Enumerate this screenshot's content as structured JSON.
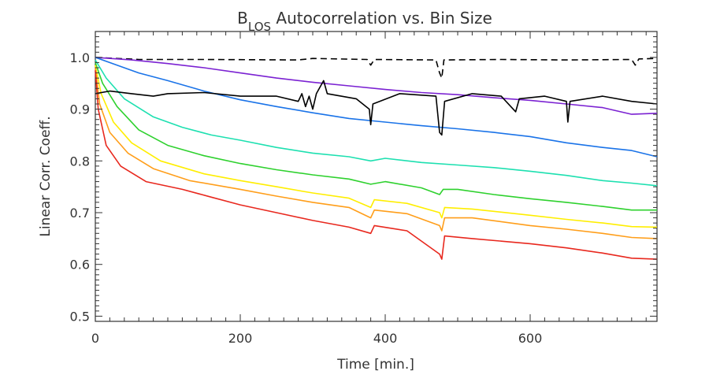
{
  "chart_data": {
    "type": "line",
    "title_main": "B",
    "title_sub": "LOS",
    "title_rest": " Autocorrelation vs. Bin Size",
    "xlabel": "Time [min.]",
    "ylabel": "Linear Corr. Coeff.",
    "xlim": [
      0,
      775
    ],
    "ylim": [
      0.49,
      1.05
    ],
    "xticks": [
      0,
      200,
      400,
      600
    ],
    "xtick_labels": [
      "0",
      "200",
      "400",
      "600"
    ],
    "yticks": [
      0.5,
      0.6,
      0.7,
      0.8,
      0.9,
      1.0
    ],
    "ytick_labels": [
      "0.5",
      "0.6",
      "0.7",
      "0.8",
      "0.9",
      "1.0"
    ],
    "grid": false,
    "series": [
      {
        "color": "#000000",
        "dashed": true,
        "points": [
          [
            0,
            1.0
          ],
          [
            60,
            0.996
          ],
          [
            150,
            0.996
          ],
          [
            280,
            0.995
          ],
          [
            300,
            0.998
          ],
          [
            375,
            0.996
          ],
          [
            380,
            0.985
          ],
          [
            385,
            0.996
          ],
          [
            470,
            0.995
          ],
          [
            475,
            0.97
          ],
          [
            478,
            0.96
          ],
          [
            481,
            0.995
          ],
          [
            560,
            0.996
          ],
          [
            650,
            0.995
          ],
          [
            740,
            0.996
          ],
          [
            745,
            0.985
          ],
          [
            750,
            0.997
          ],
          [
            775,
            0.998
          ]
        ]
      },
      {
        "color": "#7b22d2",
        "points": [
          [
            0,
            1.0
          ],
          [
            50,
            0.995
          ],
          [
            100,
            0.988
          ],
          [
            150,
            0.98
          ],
          [
            200,
            0.97
          ],
          [
            250,
            0.96
          ],
          [
            300,
            0.952
          ],
          [
            350,
            0.945
          ],
          [
            400,
            0.938
          ],
          [
            450,
            0.932
          ],
          [
            500,
            0.928
          ],
          [
            550,
            0.922
          ],
          [
            600,
            0.917
          ],
          [
            650,
            0.91
          ],
          [
            700,
            0.903
          ],
          [
            740,
            0.89
          ],
          [
            775,
            0.892
          ]
        ]
      },
      {
        "color": "#1a73e8",
        "points": [
          [
            0,
            1.0
          ],
          [
            30,
            0.985
          ],
          [
            60,
            0.97
          ],
          [
            100,
            0.955
          ],
          [
            150,
            0.935
          ],
          [
            200,
            0.918
          ],
          [
            250,
            0.905
          ],
          [
            300,
            0.893
          ],
          [
            350,
            0.882
          ],
          [
            400,
            0.875
          ],
          [
            450,
            0.868
          ],
          [
            500,
            0.862
          ],
          [
            550,
            0.855
          ],
          [
            600,
            0.847
          ],
          [
            650,
            0.835
          ],
          [
            700,
            0.826
          ],
          [
            740,
            0.82
          ],
          [
            775,
            0.808
          ]
        ]
      },
      {
        "color": "#1de0b0",
        "points": [
          [
            0,
            0.995
          ],
          [
            15,
            0.96
          ],
          [
            40,
            0.92
          ],
          [
            80,
            0.885
          ],
          [
            120,
            0.865
          ],
          [
            160,
            0.85
          ],
          [
            200,
            0.84
          ],
          [
            250,
            0.826
          ],
          [
            300,
            0.815
          ],
          [
            350,
            0.808
          ],
          [
            380,
            0.8
          ],
          [
            400,
            0.805
          ],
          [
            450,
            0.797
          ],
          [
            500,
            0.792
          ],
          [
            550,
            0.787
          ],
          [
            600,
            0.78
          ],
          [
            650,
            0.772
          ],
          [
            700,
            0.762
          ],
          [
            740,
            0.757
          ],
          [
            775,
            0.752
          ]
        ]
      },
      {
        "color": "#2ed12e",
        "points": [
          [
            0,
            0.99
          ],
          [
            10,
            0.95
          ],
          [
            30,
            0.905
          ],
          [
            60,
            0.86
          ],
          [
            100,
            0.83
          ],
          [
            150,
            0.81
          ],
          [
            200,
            0.795
          ],
          [
            250,
            0.783
          ],
          [
            300,
            0.773
          ],
          [
            350,
            0.765
          ],
          [
            380,
            0.755
          ],
          [
            400,
            0.76
          ],
          [
            450,
            0.748
          ],
          [
            475,
            0.735
          ],
          [
            480,
            0.745
          ],
          [
            500,
            0.745
          ],
          [
            550,
            0.735
          ],
          [
            600,
            0.727
          ],
          [
            650,
            0.72
          ],
          [
            700,
            0.712
          ],
          [
            740,
            0.705
          ],
          [
            775,
            0.705
          ]
        ]
      },
      {
        "color": "#ffee00",
        "points": [
          [
            0,
            0.985
          ],
          [
            8,
            0.93
          ],
          [
            25,
            0.875
          ],
          [
            50,
            0.835
          ],
          [
            90,
            0.8
          ],
          [
            150,
            0.775
          ],
          [
            200,
            0.762
          ],
          [
            250,
            0.75
          ],
          [
            300,
            0.738
          ],
          [
            350,
            0.728
          ],
          [
            380,
            0.71
          ],
          [
            385,
            0.725
          ],
          [
            430,
            0.718
          ],
          [
            475,
            0.7
          ],
          [
            478,
            0.69
          ],
          [
            482,
            0.71
          ],
          [
            520,
            0.707
          ],
          [
            600,
            0.695
          ],
          [
            650,
            0.687
          ],
          [
            700,
            0.68
          ],
          [
            740,
            0.673
          ],
          [
            775,
            0.672
          ]
        ]
      },
      {
        "color": "#ff9e1a",
        "points": [
          [
            0,
            0.98
          ],
          [
            6,
            0.91
          ],
          [
            20,
            0.855
          ],
          [
            45,
            0.815
          ],
          [
            80,
            0.785
          ],
          [
            130,
            0.762
          ],
          [
            200,
            0.745
          ],
          [
            250,
            0.732
          ],
          [
            300,
            0.72
          ],
          [
            350,
            0.71
          ],
          [
            380,
            0.69
          ],
          [
            385,
            0.705
          ],
          [
            430,
            0.698
          ],
          [
            475,
            0.675
          ],
          [
            478,
            0.665
          ],
          [
            482,
            0.69
          ],
          [
            520,
            0.69
          ],
          [
            600,
            0.675
          ],
          [
            650,
            0.668
          ],
          [
            700,
            0.66
          ],
          [
            740,
            0.652
          ],
          [
            775,
            0.65
          ]
        ]
      },
      {
        "color": "#e8281e",
        "points": [
          [
            0,
            0.975
          ],
          [
            4,
            0.9
          ],
          [
            15,
            0.83
          ],
          [
            35,
            0.79
          ],
          [
            70,
            0.76
          ],
          [
            120,
            0.745
          ],
          [
            160,
            0.73
          ],
          [
            200,
            0.715
          ],
          [
            250,
            0.7
          ],
          [
            300,
            0.685
          ],
          [
            350,
            0.672
          ],
          [
            380,
            0.66
          ],
          [
            385,
            0.675
          ],
          [
            430,
            0.665
          ],
          [
            475,
            0.62
          ],
          [
            478,
            0.61
          ],
          [
            482,
            0.655
          ],
          [
            520,
            0.65
          ],
          [
            600,
            0.64
          ],
          [
            650,
            0.632
          ],
          [
            700,
            0.622
          ],
          [
            740,
            0.612
          ],
          [
            775,
            0.61
          ]
        ]
      },
      {
        "color": "#000000",
        "points": [
          [
            0,
            0.93
          ],
          [
            20,
            0.935
          ],
          [
            50,
            0.93
          ],
          [
            80,
            0.925
          ],
          [
            100,
            0.93
          ],
          [
            150,
            0.932
          ],
          [
            200,
            0.925
          ],
          [
            250,
            0.925
          ],
          [
            280,
            0.915
          ],
          [
            285,
            0.93
          ],
          [
            290,
            0.905
          ],
          [
            295,
            0.925
          ],
          [
            300,
            0.9
          ],
          [
            305,
            0.93
          ],
          [
            315,
            0.955
          ],
          [
            320,
            0.93
          ],
          [
            360,
            0.92
          ],
          [
            378,
            0.9
          ],
          [
            380,
            0.87
          ],
          [
            383,
            0.91
          ],
          [
            420,
            0.93
          ],
          [
            470,
            0.925
          ],
          [
            475,
            0.855
          ],
          [
            478,
            0.85
          ],
          [
            482,
            0.915
          ],
          [
            520,
            0.93
          ],
          [
            560,
            0.925
          ],
          [
            580,
            0.895
          ],
          [
            585,
            0.92
          ],
          [
            620,
            0.925
          ],
          [
            650,
            0.915
          ],
          [
            652,
            0.875
          ],
          [
            655,
            0.915
          ],
          [
            700,
            0.925
          ],
          [
            740,
            0.915
          ],
          [
            775,
            0.91
          ]
        ]
      }
    ]
  }
}
